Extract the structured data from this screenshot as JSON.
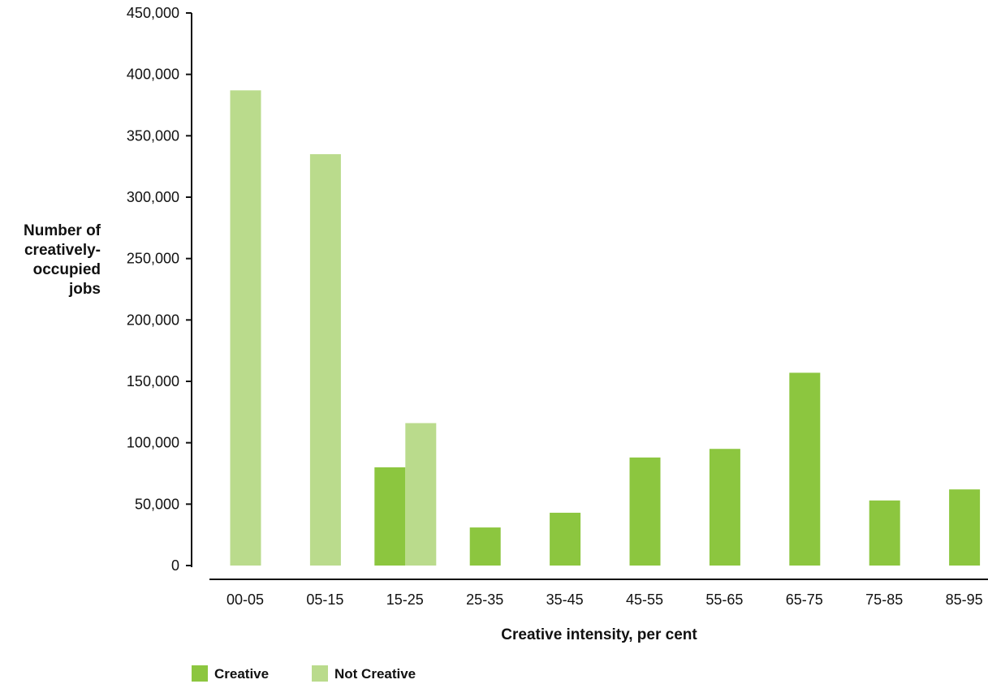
{
  "chart_data": {
    "type": "bar",
    "title": "",
    "xlabel": "Creative intensity, per cent",
    "ylabel": "Number of creatively-occupied jobs",
    "ylabel_lines": [
      "Number of",
      "creatively-",
      "occupied",
      "jobs"
    ],
    "ylim": [
      0,
      450000
    ],
    "yticks": [
      0,
      50000,
      100000,
      150000,
      200000,
      250000,
      300000,
      350000,
      400000,
      450000
    ],
    "ytick_labels": [
      "0",
      "50,000",
      "100,000",
      "150,000",
      "200,000",
      "250,000",
      "300,000",
      "350,000",
      "400,000",
      "450,000"
    ],
    "categories": [
      "00-05",
      "05-15",
      "15-25",
      "25-35",
      "35-45",
      "45-55",
      "55-65",
      "65-75",
      "75-85",
      "85-95"
    ],
    "series": [
      {
        "name": "Creative",
        "color": "#8cc63f",
        "values": [
          null,
          null,
          80000,
          31000,
          43000,
          88000,
          95000,
          157000,
          53000,
          62000
        ]
      },
      {
        "name": "Not Creative",
        "color": "#badb8c",
        "values": [
          387000,
          335000,
          116000,
          null,
          null,
          null,
          null,
          null,
          null,
          null
        ]
      }
    ],
    "legend": {
      "position": "bottom-left",
      "items": [
        {
          "label": "Creative",
          "color": "#8cc63f"
        },
        {
          "label": "Not Creative",
          "color": "#badb8c"
        }
      ]
    },
    "grid": false
  }
}
